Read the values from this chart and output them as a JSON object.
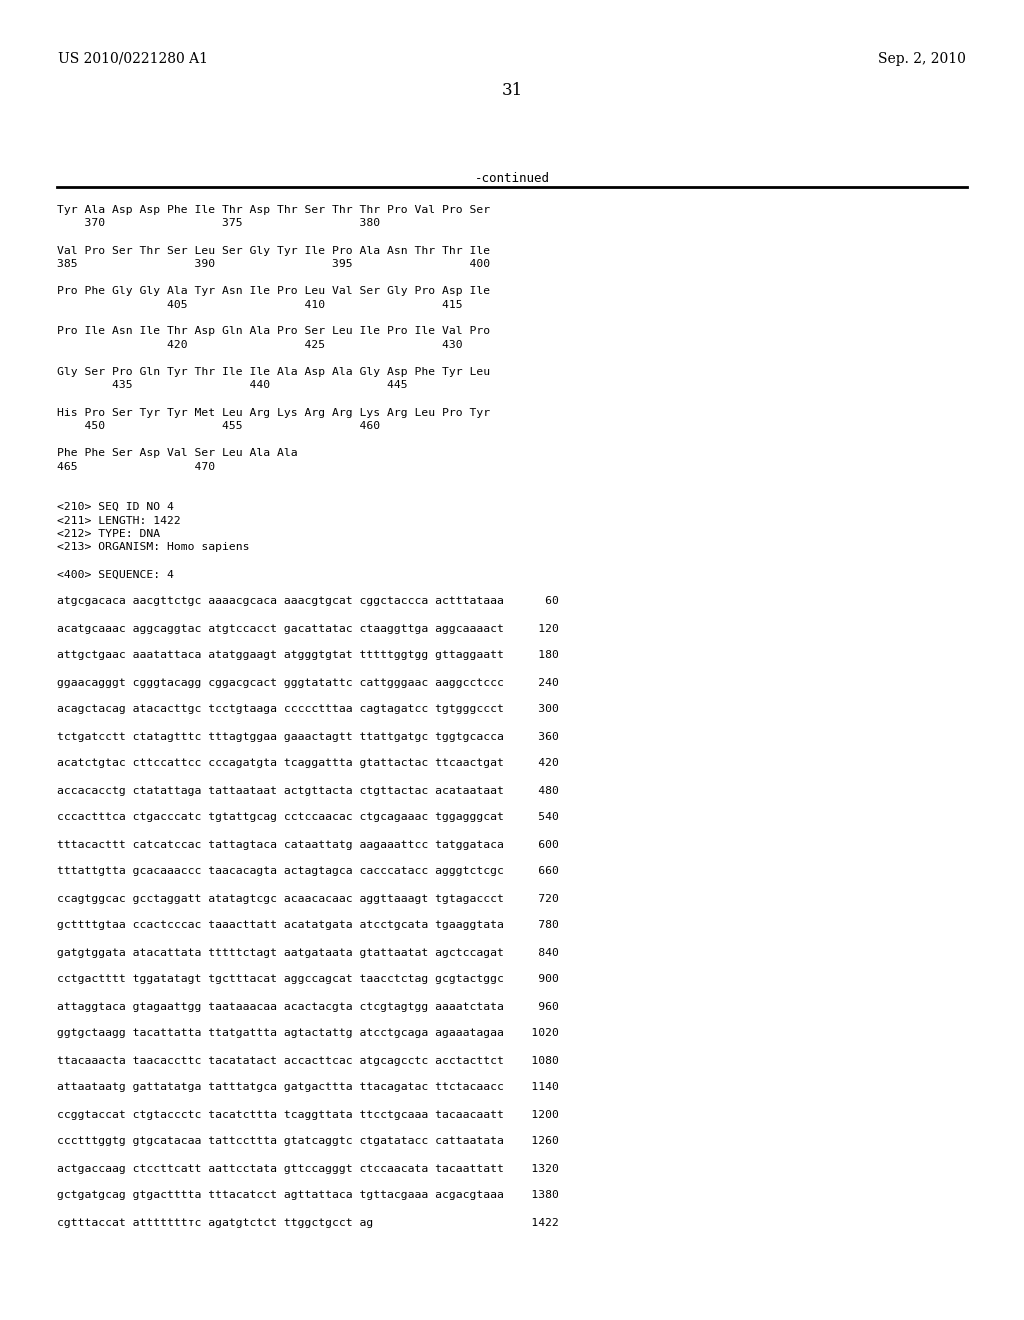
{
  "header_left": "US 2010/0221280 A1",
  "header_right": "Sep. 2, 2010",
  "page_number": "31",
  "continued_label": "-continued",
  "background_color": "#ffffff",
  "text_color": "#000000",
  "content_lines": [
    "Tyr Ala Asp Asp Phe Ile Thr Asp Thr Ser Thr Thr Pro Val Pro Ser",
    "    370                 375                 380",
    "",
    "Val Pro Ser Thr Ser Leu Ser Gly Tyr Ile Pro Ala Asn Thr Thr Ile",
    "385                 390                 395                 400",
    "",
    "Pro Phe Gly Gly Ala Tyr Asn Ile Pro Leu Val Ser Gly Pro Asp Ile",
    "                405                 410                 415",
    "",
    "Pro Ile Asn Ile Thr Asp Gln Ala Pro Ser Leu Ile Pro Ile Val Pro",
    "                420                 425                 430",
    "",
    "Gly Ser Pro Gln Tyr Thr Ile Ile Ala Asp Ala Gly Asp Phe Tyr Leu",
    "        435                 440                 445",
    "",
    "His Pro Ser Tyr Tyr Met Leu Arg Lys Arg Arg Lys Arg Leu Pro Tyr",
    "    450                 455                 460",
    "",
    "Phe Phe Ser Asp Val Ser Leu Ala Ala",
    "465                 470",
    "",
    "",
    "<210> SEQ ID NO 4",
    "<211> LENGTH: 1422",
    "<212> TYPE: DNA",
    "<213> ORGANISM: Homo sapiens",
    "",
    "<400> SEQUENCE: 4",
    "",
    "atgcgacaca aacgttctgc aaaacgcaca aaacgtgcat cggctaccca actttataaа      60",
    "",
    "acatgcaaac aggcaggtac atgtccacct gacattatac ctaaggttga aggcaaaact     120",
    "",
    "attgctgaac aaatattaca atatggaagt atgggtgtat tttttggtgg gttaggaatt     180",
    "",
    "ggaacagggt cgggtacagg cggacgcact gggtatattc cattgggaac aaggcctccc     240",
    "",
    "acagctacag atacacttgc tcctgtaaga ccccctttaa cagtagatcc tgtgggccct     300",
    "",
    "tctgatcctt ctatagtttc tttagtggaa gaaactagtt ttattgatgc tggtgcacca     360",
    "",
    "acatctgtac cttccattcc cccagatgta tcaggattta gtattactac ttcaactgat     420",
    "",
    "accacacctg ctatattaga tattaataat actgttacta ctgttactac acataataat     480",
    "",
    "cccactttca ctgacccatc tgtattgcag cctccaacac ctgcagaaac tggagggcat     540",
    "",
    "tttacacttt catcatccac tattagtaca cataattatg aagaaattcc tatggataca     600",
    "",
    "tttattgtta gcacaaaccc taacacagta actagtagca cacccatacc agggtctcgc     660",
    "",
    "ccagtggcac gcctaggatt atatagtcgc acaacacaac aggttaaagt tgtagaccct     720",
    "",
    "gcttttgtaa ccactcccac taaacttatt acatatgata atcctgcata tgaaggtata     780",
    "",
    "gatgtggata atacattata tttttctagt aatgataata gtattaatat agctccagat     840",
    "",
    "cctgactttt tggatatagt tgctttacat aggccagcat taacctctag gcgtactggc     900",
    "",
    "attaggtaca gtagaattgg taataaacaa acactacgta ctcgtagtgg aaaatctata     960",
    "",
    "ggtgctaagg tacattatta ttatgattta agtactattg atcctgcaga agaaatagaa    1020",
    "",
    "ttacaaacta taacaccttc tacatatact accacttcac atgcagcctc acctacttct    1080",
    "",
    "attaataatg gattatatga tatttatgca gatgacttta ttacagatac ttctacaacc    1140",
    "",
    "ccggtaccat ctgtaccctc tacatcttta tcaggttata ttcctgcaaa tacaacaatt    1200",
    "",
    "ccctttggtg gtgcatacaa tattccttta gtatcaggtc ctgatatacc cattaatata    1260",
    "",
    "actgaccaag ctccttcatt aattcctata gttccagggt ctccaacata tacaattatt    1320",
    "",
    "gctgatgcag gtgactttta tttacatcct agttattaca tgttacgaaa acgacgtaaa    1380",
    "",
    "cgtttaccat atttttttтc agatgtctct ttggctgcct ag                       1422"
  ]
}
